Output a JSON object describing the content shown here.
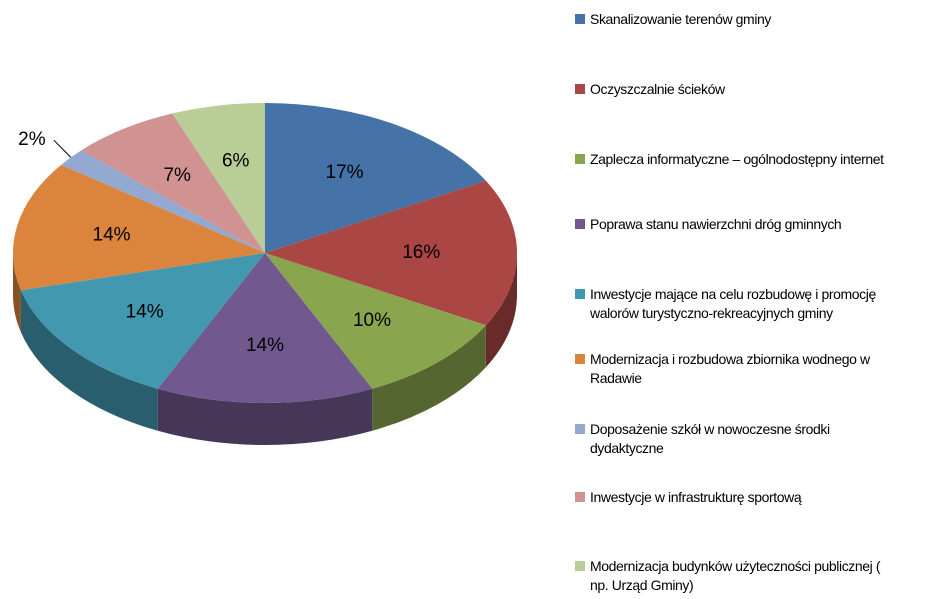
{
  "chart_data": {
    "type": "pie",
    "three_d": true,
    "categories": [
      "Skanalizowanie terenów gminy",
      "Oczyszczalnie ścieków",
      "Zaplecza informatyczne – ogólnodostępny internet",
      "Poprawa stanu nawierzchni dróg gminnych",
      "Inwestycje mające na celu rozbudowę i promocję walorów turystyczno-rekreacyjnych gminy",
      "Modernizacja i rozbudowa zbiornika wodnego w Radawie",
      "Doposażenie szkół w nowoczesne środki dydaktyczne",
      "Inwestycje w infrastrukturę sportową",
      "Modernizacja budynków użyteczności publicznej ( np. Urząd Gminy)"
    ],
    "values": [
      17,
      16,
      10,
      14,
      14,
      14,
      2,
      7,
      6
    ],
    "value_labels": [
      "17%",
      "16%",
      "10%",
      "14%",
      "14%",
      "14%",
      "2%",
      "7%",
      "6%"
    ],
    "colors": [
      "#4572a7",
      "#aa4643",
      "#89a54e",
      "#71588f",
      "#4198af",
      "#db843d",
      "#93a9cf",
      "#d19392",
      "#b9cd96"
    ],
    "legend": "right"
  }
}
